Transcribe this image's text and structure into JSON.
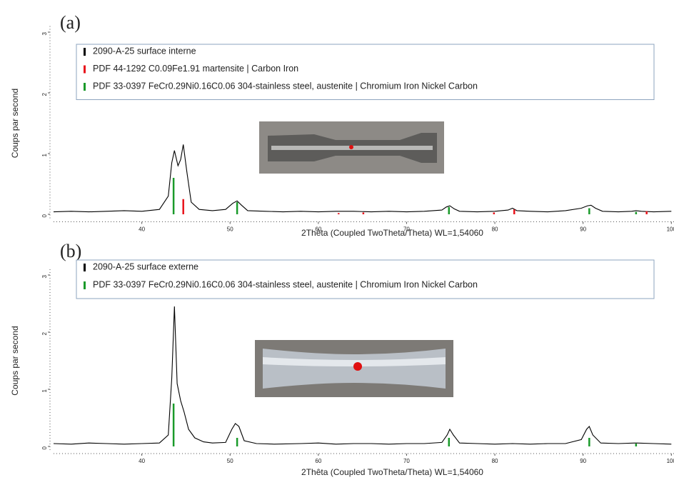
{
  "chart_data": [
    {
      "type": "line",
      "panel_label": "(a)",
      "x_label": "2Thêta (Coupled TwoTheta/Theta) WL=1,54060",
      "y_label": "Coups par second",
      "xlim": [
        30,
        100.3
      ],
      "xticks": [
        40,
        50,
        60,
        70,
        80,
        90,
        100
      ],
      "ylim": [
        -0.1,
        3.1
      ],
      "yticks": [
        0,
        1,
        2,
        3
      ],
      "series": [
        {
          "name": "2090-A-25 surface interne",
          "color": "#000000",
          "x": [
            30,
            32,
            34,
            36,
            38,
            40,
            42,
            43,
            43.4,
            43.7,
            44.1,
            44.4,
            44.7,
            45.1,
            45.6,
            46.5,
            48,
            49.5,
            50.3,
            50.8,
            51.3,
            52,
            54,
            56,
            58,
            60,
            62,
            64,
            66,
            68,
            70,
            72,
            74,
            74.5,
            74.9,
            75.4,
            76,
            78,
            80,
            81.5,
            82,
            82.5,
            84,
            86,
            88,
            89.8,
            90.5,
            90.9,
            91.4,
            92.2,
            94,
            95.5,
            96,
            96.6,
            98,
            100
          ],
          "values": [
            0.04,
            0.05,
            0.04,
            0.05,
            0.06,
            0.05,
            0.08,
            0.3,
            0.85,
            1.05,
            0.8,
            0.9,
            1.15,
            0.7,
            0.2,
            0.08,
            0.06,
            0.08,
            0.18,
            0.22,
            0.15,
            0.06,
            0.05,
            0.04,
            0.05,
            0.04,
            0.05,
            0.05,
            0.04,
            0.05,
            0.04,
            0.05,
            0.07,
            0.12,
            0.14,
            0.09,
            0.05,
            0.04,
            0.05,
            0.07,
            0.1,
            0.06,
            0.05,
            0.04,
            0.06,
            0.1,
            0.14,
            0.15,
            0.1,
            0.05,
            0.04,
            0.05,
            0.06,
            0.05,
            0.04,
            0.05
          ]
        },
        {
          "name": "PDF 44-1292 C0.09Fe1.91 martensite | Carbon Iron",
          "color": "#e8141c",
          "type": "stem",
          "x": [
            44.7,
            62.3,
            65.1,
            79.9,
            82.2,
            97.2
          ],
          "values": [
            0.25,
            0.02,
            0.03,
            0.03,
            0.08,
            0.05
          ]
        },
        {
          "name": "PDF 33-0397 FeCr0.29Ni0.16C0.06 304-stainless steel, austenite | Chromium Iron Nickel Carbon",
          "color": "#1a9a2a",
          "type": "stem",
          "x": [
            43.6,
            50.8,
            74.8,
            90.7,
            96.0
          ],
          "values": [
            0.6,
            0.2,
            0.12,
            0.1,
            0.04
          ]
        }
      ]
    },
    {
      "type": "line",
      "panel_label": "(b)",
      "x_label": "2Thêta (Coupled TwoTheta/Theta) WL=1,54060",
      "y_label": "Coups par second",
      "xlim": [
        30,
        100.3
      ],
      "xticks": [
        40,
        50,
        60,
        70,
        80,
        90,
        100
      ],
      "ylim": [
        -0.1,
        3.1
      ],
      "yticks": [
        0,
        1,
        2,
        3
      ],
      "series": [
        {
          "name": "2090-A-25 surface externe",
          "color": "#000000",
          "x": [
            30,
            32,
            34,
            36,
            38,
            40,
            42,
            43,
            43.4,
            43.7,
            44.0,
            44.4,
            44.8,
            45.3,
            46,
            47,
            48,
            49.5,
            50.2,
            50.6,
            51,
            51.6,
            53,
            55,
            58,
            60,
            62,
            64,
            66,
            68,
            70,
            72,
            74,
            74.6,
            74.9,
            75.3,
            76,
            78,
            80,
            82,
            84,
            86,
            88,
            89.8,
            90.4,
            90.7,
            91.1,
            92,
            94,
            96,
            98,
            100
          ],
          "values": [
            0.05,
            0.04,
            0.06,
            0.05,
            0.04,
            0.05,
            0.06,
            0.2,
            1.2,
            2.45,
            1.1,
            0.8,
            0.6,
            0.3,
            0.15,
            0.08,
            0.06,
            0.07,
            0.3,
            0.4,
            0.35,
            0.1,
            0.05,
            0.04,
            0.05,
            0.06,
            0.04,
            0.05,
            0.05,
            0.04,
            0.05,
            0.05,
            0.07,
            0.2,
            0.3,
            0.2,
            0.06,
            0.05,
            0.04,
            0.05,
            0.04,
            0.05,
            0.05,
            0.12,
            0.3,
            0.35,
            0.2,
            0.06,
            0.05,
            0.06,
            0.05,
            0.04
          ]
        },
        {
          "name": "PDF 33-0397 FeCr0.29Ni0.16C0.06 304-stainless steel, austenite | Chromium Iron Nickel Carbon",
          "color": "#1a9a2a",
          "type": "stem",
          "x": [
            43.6,
            50.8,
            74.8,
            90.7,
            96.0
          ],
          "values": [
            0.75,
            0.15,
            0.15,
            0.15,
            0.05
          ]
        }
      ]
    }
  ]
}
